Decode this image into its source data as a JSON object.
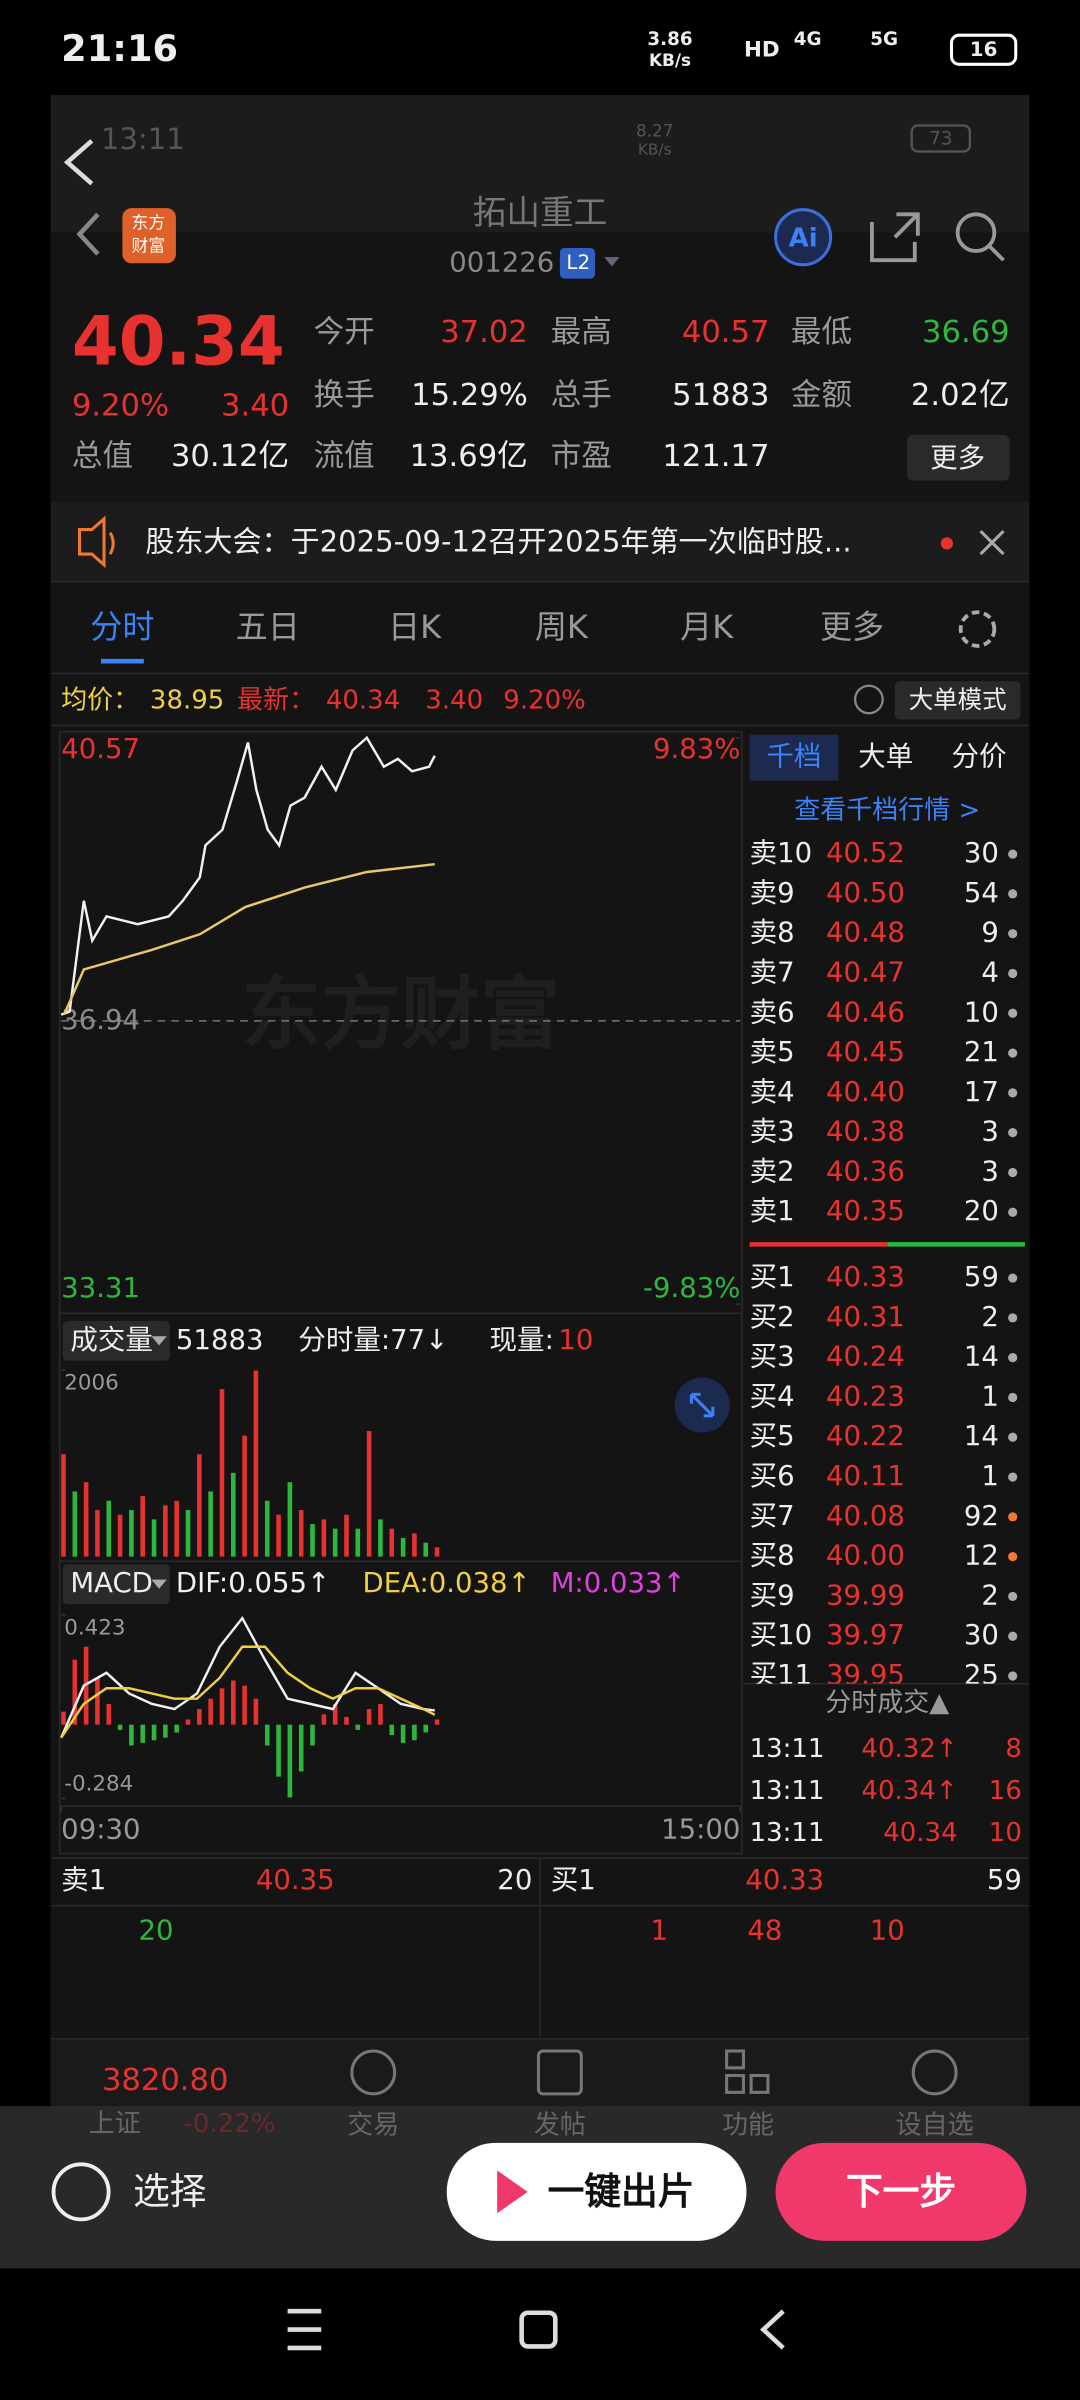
{
  "status_bar": {
    "time": "21:16",
    "speed": "3.86",
    "speed_unit": "KB/s",
    "hd": "HD",
    "net": "4G",
    "net2": "5G",
    "battery": "16"
  },
  "inner_status_bar": {
    "time": "13:11",
    "speed": "8.27",
    "speed_unit": "KB/s",
    "battery": "73"
  },
  "header": {
    "logo": [
      "东方",
      "财富"
    ],
    "title": "拓山重工",
    "code": "001226",
    "level": "L2",
    "ai": "Ai"
  },
  "quote": {
    "price": "40.34",
    "change_pct": "9.20%",
    "change": "3.40",
    "stats": [
      [
        "今开",
        "37.02"
      ],
      [
        "最高",
        "40.57"
      ],
      [
        "最低",
        "36.69"
      ],
      [
        "换手",
        "15.29%"
      ],
      [
        "总手",
        "51883"
      ],
      [
        "金额",
        "2.02亿"
      ],
      [
        "总值",
        "30.12亿"
      ],
      [
        "流值",
        "13.69亿"
      ],
      [
        "市盈",
        "121.17"
      ]
    ],
    "more": "更多"
  },
  "notice": {
    "text": "股东大会：于2025-09-12召开2025年第一次临时股..."
  },
  "tabs": {
    "items": [
      "分时",
      "五日",
      "日K",
      "周K",
      "月K",
      "更多"
    ]
  },
  "info": {
    "avg_label": "均价：",
    "avg": "38.95",
    "latest_label": "最新：",
    "latest": "40.34",
    "change": "3.40",
    "pct": "9.20%",
    "mode": "大单模式"
  },
  "chart_data": [
    {
      "type": "line",
      "watermark": "东方财富",
      "xlim": [
        0,
        240
      ],
      "ylim": [
        33.31,
        40.57
      ],
      "yticks": [
        40.57,
        36.94,
        33.31
      ],
      "ytick_colors": [
        "#e8322f",
        "#8a8a8a",
        "#2db83d"
      ],
      "y2lim": [
        -9.83,
        9.83
      ],
      "y2ticks": [
        {
          "value": 9.83,
          "label": "9.83%"
        },
        {
          "value": -9.83,
          "label": "-9.83%"
        }
      ],
      "series": [
        {
          "color": "#f2f2f2",
          "x": [
            0,
            3,
            8,
            11,
            16,
            27,
            38,
            43,
            49,
            51,
            57,
            62,
            66,
            69,
            73,
            77,
            81,
            86,
            92,
            97,
            103,
            108,
            114,
            119,
            124,
            130,
            132
          ],
          "values": [
            37.02,
            37.06,
            38.48,
            37.97,
            38.28,
            38.18,
            38.28,
            38.48,
            38.78,
            39.19,
            39.39,
            40.0,
            40.51,
            39.9,
            39.39,
            39.19,
            39.7,
            39.8,
            40.2,
            39.9,
            40.41,
            40.57,
            40.2,
            40.3,
            40.14,
            40.2,
            40.34
          ]
        },
        {
          "color": "#e8c96a",
          "x": [
            1,
            8,
            32,
            49,
            65,
            86,
            108,
            132
          ],
          "values": [
            37.02,
            37.6,
            37.85,
            38.05,
            38.4,
            38.65,
            38.85,
            38.95
          ]
        }
      ]
    },
    {
      "type": "bar",
      "label": "成交量",
      "total": "51883",
      "minute_vol": "分时量:77↓",
      "current_label": "现量:",
      "current": "10",
      "xlim": [
        0,
        240
      ],
      "ylim": [
        0,
        2006
      ],
      "yticks": [
        2006
      ],
      "x": [
        0,
        4,
        8,
        12,
        16,
        20,
        24,
        28,
        32,
        36,
        40,
        44,
        48,
        52,
        56,
        60,
        64,
        68,
        72,
        76,
        80,
        84,
        88,
        92,
        96,
        100,
        104,
        108,
        112,
        116,
        120,
        124,
        128,
        132
      ],
      "values": [
        1100,
        700,
        800,
        500,
        600,
        450,
        500,
        650,
        400,
        550,
        600,
        500,
        1100,
        700,
        1800,
        900,
        1300,
        2000,
        600,
        450,
        800,
        500,
        350,
        400,
        300,
        450,
        300,
        1350,
        400,
        300,
        200,
        250,
        150,
        100
      ],
      "colors": [
        "#e8322f",
        "#2db83d",
        "#e8322f",
        "#e8322f",
        "#2db83d",
        "#e8322f",
        "#2db83d",
        "#e8322f",
        "#2db83d",
        "#e8322f",
        "#e8322f",
        "#2db83d",
        "#e8322f",
        "#2db83d",
        "#e8322f",
        "#2db83d",
        "#e8322f",
        "#e8322f",
        "#2db83d",
        "#e8322f",
        "#2db83d",
        "#e8322f",
        "#2db83d",
        "#e8322f",
        "#2db83d",
        "#e8322f",
        "#2db83d",
        "#e8322f",
        "#2db83d",
        "#e8322f",
        "#2db83d",
        "#e8322f",
        "#2db83d",
        "#e8322f"
      ]
    },
    {
      "type": "macd",
      "label": "MACD",
      "xlim": [
        0,
        240
      ],
      "ylim": [
        -0.284,
        0.423
      ],
      "yticks": [
        0.423,
        -0.284
      ],
      "xticks": [
        {
          "value": 0,
          "label": "09:30"
        },
        {
          "value": 240,
          "label": "15:00"
        }
      ],
      "histogram": {
        "label": "M:0.033↑",
        "color": "#e040e0",
        "up_color": "#e8322f",
        "down_color": "#2db83d",
        "x": [
          0,
          4,
          8,
          12,
          16,
          20,
          24,
          28,
          32,
          36,
          40,
          44,
          48,
          52,
          56,
          60,
          64,
          68,
          72,
          76,
          80,
          84,
          88,
          92,
          96,
          100,
          104,
          108,
          112,
          116,
          120,
          124,
          128,
          132
        ],
        "values": [
          0.05,
          0.25,
          0.3,
          0.18,
          0.08,
          -0.02,
          -0.08,
          -0.07,
          -0.06,
          -0.05,
          -0.03,
          0.02,
          0.06,
          0.1,
          0.14,
          0.17,
          0.15,
          0.1,
          -0.08,
          -0.2,
          -0.28,
          -0.18,
          -0.08,
          0.04,
          0.08,
          0.03,
          -0.02,
          0.06,
          0.08,
          -0.04,
          -0.07,
          -0.06,
          -0.03,
          0.02
        ]
      },
      "series": [
        {
          "name": "DIF:0.055↑",
          "color": "#f2f2f2",
          "x": [
            0,
            8,
            16,
            24,
            32,
            40,
            48,
            56,
            64,
            72,
            80,
            88,
            96,
            104,
            112,
            120,
            128,
            132
          ],
          "values": [
            -0.05,
            0.15,
            0.2,
            0.12,
            0.08,
            0.06,
            0.12,
            0.3,
            0.41,
            0.25,
            0.1,
            0.08,
            0.06,
            0.2,
            0.14,
            0.08,
            0.06,
            0.055
          ]
        },
        {
          "name": "DEA:0.038↑",
          "color": "#f0d040",
          "x": [
            0,
            8,
            16,
            24,
            32,
            40,
            48,
            56,
            64,
            72,
            80,
            88,
            96,
            104,
            112,
            120,
            128,
            132
          ],
          "values": [
            -0.05,
            0.08,
            0.14,
            0.14,
            0.12,
            0.1,
            0.1,
            0.18,
            0.3,
            0.3,
            0.2,
            0.14,
            0.1,
            0.14,
            0.14,
            0.1,
            0.06,
            0.038
          ]
        }
      ]
    }
  ],
  "order_book": {
    "tabs": [
      "千档",
      "大单",
      "分价"
    ],
    "link": "查看千档行情 >",
    "asks": [
      {
        "label": "卖10",
        "price": "40.52",
        "volume": "30",
        "dot": "#aaaaaa"
      },
      {
        "label": "卖9",
        "price": "40.50",
        "volume": "54",
        "dot": "#aaaaaa"
      },
      {
        "label": "卖8",
        "price": "40.48",
        "volume": "9",
        "dot": "#aaaaaa"
      },
      {
        "label": "卖7",
        "price": "40.47",
        "volume": "4",
        "dot": "#aaaaaa"
      },
      {
        "label": "卖6",
        "price": "40.46",
        "volume": "10",
        "dot": "#aaaaaa"
      },
      {
        "label": "卖5",
        "price": "40.45",
        "volume": "21",
        "dot": "#aaaaaa"
      },
      {
        "label": "卖4",
        "price": "40.40",
        "volume": "17",
        "dot": "#aaaaaa"
      },
      {
        "label": "卖3",
        "price": "40.38",
        "volume": "3",
        "dot": "#aaaaaa"
      },
      {
        "label": "卖2",
        "price": "40.36",
        "volume": "3",
        "dot": "#aaaaaa"
      },
      {
        "label": "卖1",
        "price": "40.35",
        "volume": "20",
        "dot": "#aaaaaa"
      }
    ],
    "bids": [
      {
        "label": "买1",
        "price": "40.33",
        "volume": "59",
        "dot": "#aaaaaa"
      },
      {
        "label": "买2",
        "price": "40.31",
        "volume": "2",
        "dot": "#aaaaaa"
      },
      {
        "label": "买3",
        "price": "40.24",
        "volume": "14",
        "dot": "#aaaaaa"
      },
      {
        "label": "买4",
        "price": "40.23",
        "volume": "1",
        "dot": "#aaaaaa"
      },
      {
        "label": "买5",
        "price": "40.22",
        "volume": "14",
        "dot": "#aaaaaa"
      },
      {
        "label": "买6",
        "price": "40.11",
        "volume": "1",
        "dot": "#aaaaaa"
      },
      {
        "label": "买7",
        "price": "40.08",
        "volume": "92",
        "dot": "#f07830"
      },
      {
        "label": "买8",
        "price": "40.00",
        "volume": "12",
        "dot": "#f07830"
      },
      {
        "label": "买9",
        "price": "39.99",
        "volume": "2",
        "dot": "#aaaaaa"
      },
      {
        "label": "买10",
        "price": "39.97",
        "volume": "30",
        "dot": "#aaaaaa"
      },
      {
        "label": "买11",
        "price": "39.95",
        "volume": "25",
        "dot": "#aaaaaa"
      }
    ],
    "trades_title": "分时成交▲",
    "trades": [
      {
        "time": "13:11",
        "price": "40.32↑",
        "volume": "8"
      },
      {
        "time": "13:11",
        "price": "40.34↑",
        "volume": "16"
      },
      {
        "time": "13:11",
        "price": "40.34",
        "volume": "10"
      }
    ]
  },
  "bottom_quote": {
    "ask_label": "卖1",
    "ask_price": "40.35",
    "ask_volume": "20",
    "bid_label": "买1",
    "bid_price": "40.33",
    "bid_volume": "59",
    "ask_orders": [
      "20"
    ],
    "bid_orders": [
      "1",
      "48",
      "10"
    ]
  },
  "app_nav": {
    "index_value": "3820.80",
    "index_name": "上证",
    "index_change": "-0.22%",
    "items": [
      "交易",
      "发帖",
      "功能",
      "设自选"
    ]
  },
  "overlay": {
    "select": "选择",
    "make": "一键出片",
    "next": "下一步"
  }
}
